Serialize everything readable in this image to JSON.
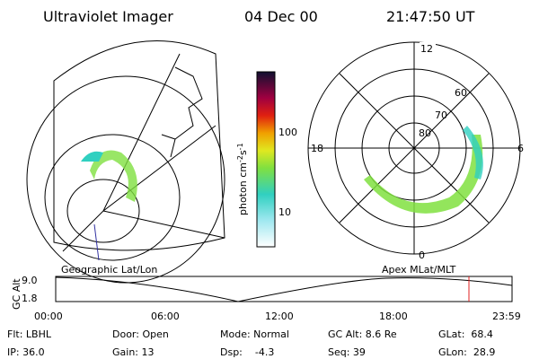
{
  "header": {
    "title": "Ultraviolet Imager",
    "date": "04 Dec 00",
    "time": "21:47:50 UT"
  },
  "colorbar": {
    "label": {
      "unit": "photon cm",
      "exp1": "-2",
      "mid": "s",
      "exp2": "-1"
    },
    "ticks": [
      "100",
      "10"
    ]
  },
  "polar": {
    "mlt": [
      "12",
      "18",
      "6",
      "0"
    ],
    "mlat": [
      "80",
      "70",
      "60"
    ]
  },
  "map_labels": {
    "left": "Geographic Lat/Lon",
    "right": "Apex MLat/MLT"
  },
  "altitude_plot": {
    "axis_label": "GC Alt",
    "ticks": [
      "9.0",
      "1.8"
    ],
    "times": [
      "00:00",
      "06:00",
      "12:00",
      "18:00",
      "23:59"
    ]
  },
  "info": [
    [
      "Flt: LBHL",
      "Door: Open",
      "Mode: Normal",
      "GC Alt: 8.6 Re",
      "GLat:  68.4"
    ],
    [
      "IP: 36.0",
      "Gain: 13",
      "Dsp:    -4.3",
      "Seq: 39",
      "GLon:  28.9"
    ]
  ]
}
